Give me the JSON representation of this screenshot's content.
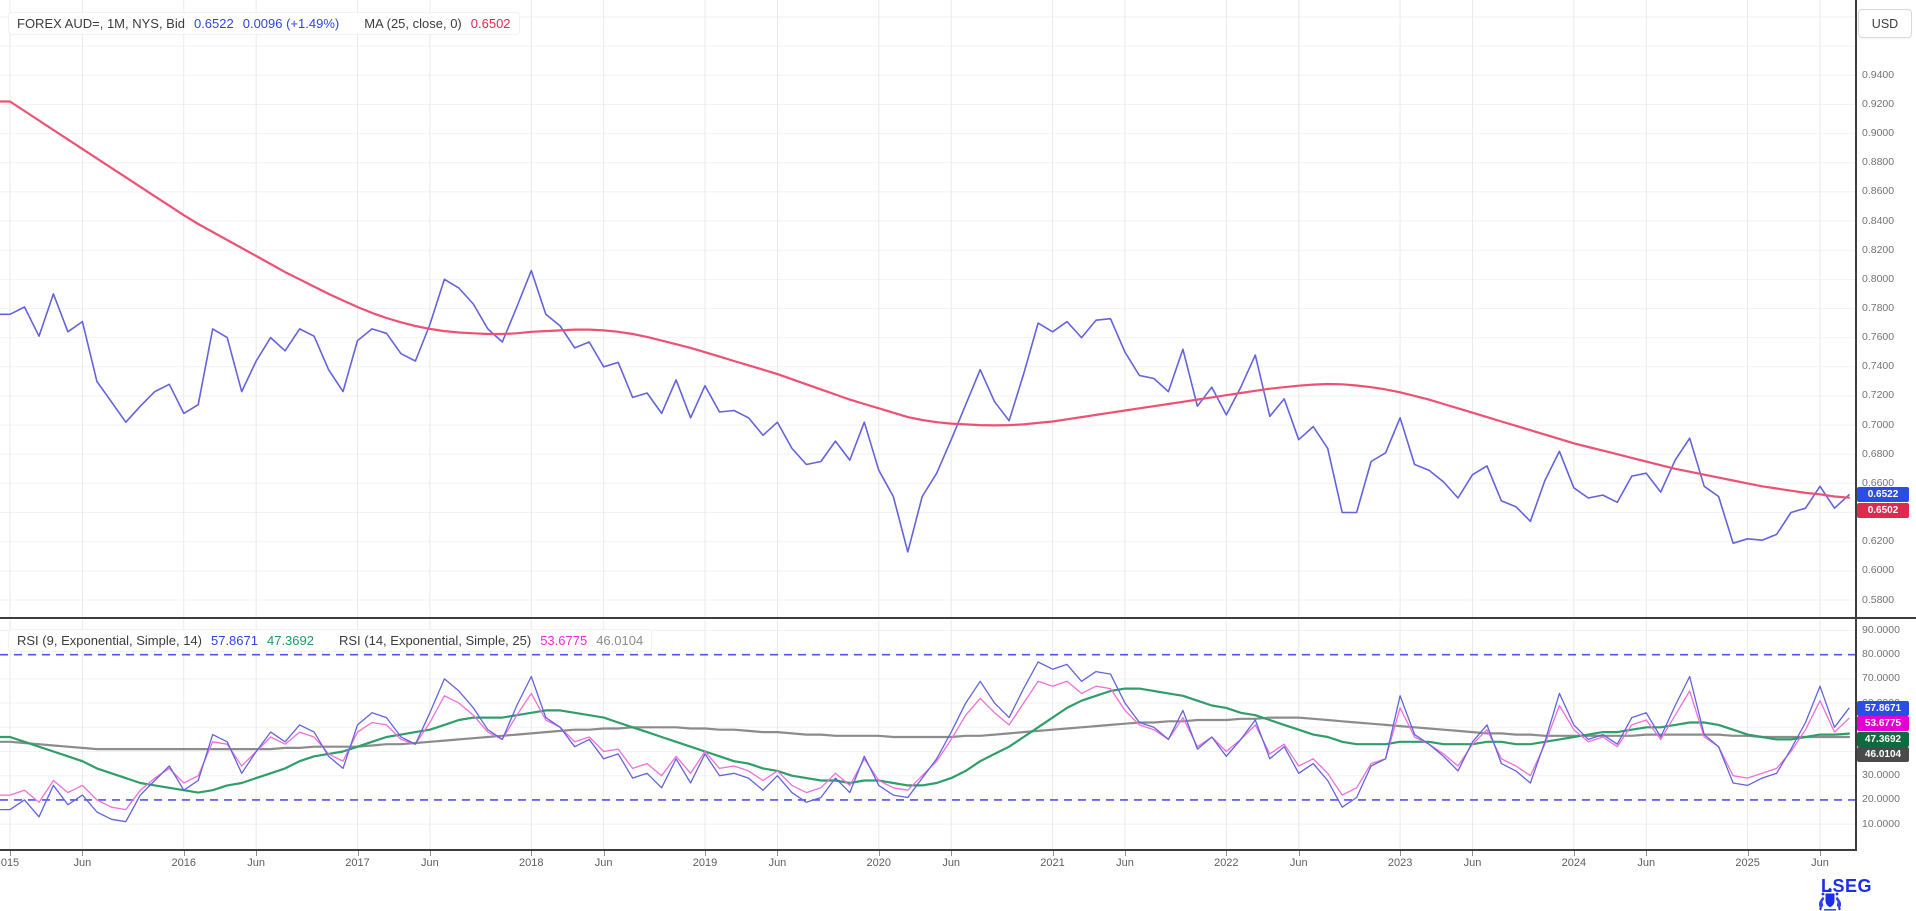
{
  "header": {
    "currency_button": "USD",
    "price_legend": [
      {
        "text": "FOREX AUD=, 1M, NYS, Bid",
        "color": "#3c3c3c"
      },
      {
        "text": "0.6522",
        "color": "#2c46e0"
      },
      {
        "text": "0.0096 (+1.49%)",
        "color": "#2c46e0"
      },
      {
        "text": "MA (25, close, 0)",
        "color": "#3c3c3c",
        "gap": true
      },
      {
        "text": "0.6502",
        "color": "#e0294e"
      }
    ],
    "rsi_legend": [
      {
        "text": "RSI (9, Exponential, Simple, 14)",
        "color": "#3c3c3c"
      },
      {
        "text": "57.8671",
        "color": "#2c46e0"
      },
      {
        "text": "47.3692",
        "color": "#1a9a66"
      },
      {
        "text": "RSI (14, Exponential, Simple, 25)",
        "color": "#3c3c3c",
        "gap": true
      },
      {
        "text": "53.6775",
        "color": "#f32ad4"
      },
      {
        "text": "46.0104",
        "color": "#8c8c8c"
      }
    ]
  },
  "axes": {
    "x_ticks": [
      {
        "label": "015",
        "m": 0
      },
      {
        "label": "Jun",
        "m": 5
      },
      {
        "label": "2016",
        "m": 12
      },
      {
        "label": "Jun",
        "m": 17
      },
      {
        "label": "2017",
        "m": 24
      },
      {
        "label": "Jun",
        "m": 29
      },
      {
        "label": "2018",
        "m": 36
      },
      {
        "label": "Jun",
        "m": 41
      },
      {
        "label": "2019",
        "m": 48
      },
      {
        "label": "Jun",
        "m": 53
      },
      {
        "label": "2020",
        "m": 60
      },
      {
        "label": "Jun",
        "m": 65
      },
      {
        "label": "2021",
        "m": 72
      },
      {
        "label": "Jun",
        "m": 77
      },
      {
        "label": "2022",
        "m": 84
      },
      {
        "label": "Jun",
        "m": 89
      },
      {
        "label": "2023",
        "m": 96
      },
      {
        "label": "Jun",
        "m": 101
      },
      {
        "label": "2024",
        "m": 108
      },
      {
        "label": "Jun",
        "m": 113
      },
      {
        "label": "2025",
        "m": 120
      },
      {
        "label": "Jun",
        "m": 125
      }
    ],
    "price_tick_labels": [
      "0.9400",
      "0.9200",
      "0.9000",
      "0.8800",
      "0.8600",
      "0.8400",
      "0.8200",
      "0.8000",
      "0.7800",
      "0.7600",
      "0.7400",
      "0.7200",
      "0.7000",
      "0.6800",
      "0.6600",
      "0.6400",
      "0.6200",
      "0.6000",
      "0.5800"
    ],
    "rsi_tick_labels": [
      "90.0000",
      "80.0000",
      "70.0000",
      "60.0000",
      "50.0000",
      "40.0000",
      "30.0000",
      "20.0000",
      "10.0000"
    ]
  },
  "badges": {
    "price": [
      {
        "text": "0.6522",
        "value": 0.6522,
        "bg": "#2a4de4"
      },
      {
        "text": "0.6502",
        "value": 0.6502,
        "bg": "#e0294e"
      }
    ],
    "rsi": [
      {
        "text": "57.8671",
        "value": 57.8671,
        "bg": "#2a4de4"
      },
      {
        "text": "53.6775",
        "value": 53.6775,
        "bg": "#e500cf"
      },
      {
        "text": "47.3692",
        "value": 47.3692,
        "bg": "#0f6b3f"
      },
      {
        "text": "46.0104",
        "value": 46.0104,
        "bg": "#4a4a4a"
      }
    ]
  },
  "chart_data": [
    {
      "panel": "price",
      "type": "line",
      "title": "FOREX AUD=, 1M, NYS, Bid",
      "symbol": "FOREX AUD=",
      "interval": "1M",
      "venue": "NYS",
      "field": "Bid",
      "last": 0.6522,
      "change": 0.0096,
      "change_pct": "+1.49%",
      "x_unit": "month",
      "x_range": [
        "2015-01",
        "2025-08"
      ],
      "ylim": [
        0.575,
        0.985
      ],
      "grid": true,
      "legend_position": "top-left",
      "series": [
        {
          "name": "Bid",
          "color": "#6363de",
          "last_label": "0.6522",
          "values": [
            0.776,
            0.781,
            0.761,
            0.79,
            0.764,
            0.771,
            0.73,
            0.716,
            0.702,
            0.713,
            0.723,
            0.728,
            0.708,
            0.714,
            0.766,
            0.76,
            0.723,
            0.744,
            0.76,
            0.751,
            0.766,
            0.761,
            0.738,
            0.723,
            0.758,
            0.766,
            0.763,
            0.749,
            0.744,
            0.769,
            0.8,
            0.794,
            0.783,
            0.766,
            0.757,
            0.781,
            0.806,
            0.776,
            0.768,
            0.753,
            0.757,
            0.74,
            0.743,
            0.719,
            0.722,
            0.708,
            0.731,
            0.705,
            0.727,
            0.709,
            0.71,
            0.705,
            0.693,
            0.702,
            0.684,
            0.673,
            0.675,
            0.689,
            0.676,
            0.702,
            0.669,
            0.651,
            0.613,
            0.651,
            0.667,
            0.69,
            0.714,
            0.738,
            0.716,
            0.703,
            0.735,
            0.77,
            0.764,
            0.771,
            0.76,
            0.772,
            0.773,
            0.75,
            0.734,
            0.732,
            0.723,
            0.752,
            0.713,
            0.726,
            0.707,
            0.726,
            0.748,
            0.706,
            0.718,
            0.69,
            0.699,
            0.684,
            0.64,
            0.64,
            0.675,
            0.681,
            0.705,
            0.673,
            0.669,
            0.661,
            0.65,
            0.666,
            0.672,
            0.648,
            0.644,
            0.634,
            0.662,
            0.682,
            0.657,
            0.65,
            0.652,
            0.647,
            0.665,
            0.667,
            0.654,
            0.676,
            0.691,
            0.658,
            0.651,
            0.619,
            0.622,
            0.621,
            0.625,
            0.64,
            0.643,
            0.658,
            0.643,
            0.6522
          ]
        },
        {
          "name": "MA (25, close, 0)",
          "color": "#ee5173",
          "last_label": "0.6502",
          "values": [
            0.922,
            0.9155,
            0.909,
            0.9025,
            0.896,
            0.8895,
            0.883,
            0.8765,
            0.87,
            0.8635,
            0.857,
            0.8505,
            0.844,
            0.838,
            0.8325,
            0.827,
            0.8215,
            0.816,
            0.8105,
            0.805,
            0.8,
            0.795,
            0.79,
            0.7855,
            0.781,
            0.777,
            0.7735,
            0.7705,
            0.768,
            0.766,
            0.7645,
            0.7635,
            0.763,
            0.7625,
            0.7625,
            0.763,
            0.764,
            0.7645,
            0.765,
            0.7655,
            0.7655,
            0.765,
            0.764,
            0.7625,
            0.7605,
            0.758,
            0.7555,
            0.753,
            0.75,
            0.747,
            0.744,
            0.741,
            0.738,
            0.735,
            0.7315,
            0.728,
            0.7245,
            0.721,
            0.7175,
            0.7145,
            0.7115,
            0.7085,
            0.7055,
            0.7035,
            0.702,
            0.701,
            0.7005,
            0.7,
            0.6998,
            0.7,
            0.7005,
            0.7015,
            0.7025,
            0.704,
            0.7055,
            0.707,
            0.7085,
            0.71,
            0.7115,
            0.713,
            0.7145,
            0.716,
            0.7175,
            0.719,
            0.7205,
            0.722,
            0.7235,
            0.725,
            0.726,
            0.727,
            0.7278,
            0.7282,
            0.728,
            0.7272,
            0.726,
            0.7245,
            0.7225,
            0.72,
            0.7175,
            0.7145,
            0.7115,
            0.7085,
            0.7055,
            0.7025,
            0.6995,
            0.6965,
            0.6935,
            0.6905,
            0.6875,
            0.685,
            0.6825,
            0.68,
            0.6775,
            0.675,
            0.6725,
            0.67,
            0.668,
            0.666,
            0.664,
            0.662,
            0.66,
            0.658,
            0.6565,
            0.655,
            0.6535,
            0.6525,
            0.651,
            0.6502
          ]
        }
      ]
    },
    {
      "panel": "rsi",
      "type": "line",
      "title": "RSI (9, Exponential, Simple, 14) / RSI (14, Exponential, Simple, 25)",
      "guides": [
        80,
        20
      ],
      "ylim": [
        0,
        100
      ],
      "grid": true,
      "series": [
        {
          "name": "RSI 9",
          "color": "#6363de",
          "last_label": "57.8671",
          "values": [
            16,
            20,
            13,
            26,
            18,
            22,
            15,
            12,
            11,
            22,
            28,
            34,
            24,
            28,
            47,
            44,
            31,
            40,
            48,
            44,
            51,
            48,
            38,
            33,
            51,
            56,
            54,
            46,
            43,
            56,
            70,
            65,
            58,
            49,
            45,
            59,
            71,
            54,
            50,
            42,
            45,
            37,
            39,
            29,
            31,
            25,
            37,
            27,
            39,
            30,
            31,
            29,
            24,
            30,
            23,
            19,
            21,
            29,
            23,
            38,
            26,
            22,
            21,
            29,
            37,
            48,
            60,
            69,
            60,
            54,
            66,
            77,
            74,
            76,
            69,
            73,
            72,
            60,
            52,
            50,
            45,
            57,
            41,
            46,
            38,
            45,
            53,
            37,
            42,
            31,
            35,
            28,
            17,
            21,
            34,
            37,
            63,
            47,
            43,
            38,
            32,
            44,
            51,
            35,
            32,
            27,
            44,
            64,
            51,
            45,
            47,
            43,
            54,
            56,
            46,
            59,
            71,
            47,
            42,
            27,
            26,
            29,
            31,
            41,
            52,
            67,
            50,
            57.9
          ]
        },
        {
          "name": "RSI 9 signal MA(14)",
          "color": "#2f9e68",
          "last_label": "47.3692",
          "values": [
            46,
            44,
            42,
            40,
            38,
            36,
            33,
            31,
            29,
            27,
            26,
            25,
            24,
            23,
            24,
            26,
            27,
            29,
            31,
            33,
            36,
            38,
            39,
            40,
            42,
            44,
            46,
            47,
            48,
            49,
            51,
            53,
            54,
            54,
            54,
            55,
            56,
            57,
            57,
            56,
            55,
            54,
            52,
            50,
            48,
            46,
            44,
            42,
            40,
            38,
            36,
            35,
            33,
            32,
            30,
            29,
            28,
            28,
            27,
            28,
            28,
            27,
            26,
            26,
            27,
            29,
            32,
            36,
            39,
            42,
            46,
            50,
            54,
            58,
            61,
            63,
            65,
            66,
            66,
            65,
            64,
            63,
            61,
            59,
            58,
            56,
            55,
            53,
            51,
            49,
            47,
            46,
            44,
            43,
            43,
            43,
            44,
            44,
            44,
            43,
            43,
            43,
            44,
            44,
            43,
            43,
            44,
            45,
            46,
            47,
            48,
            48,
            49,
            50,
            50,
            51,
            52,
            52,
            51,
            49,
            47,
            46,
            45,
            45,
            46,
            47,
            47,
            47.4
          ]
        },
        {
          "name": "RSI 14",
          "color": "#f06fd8",
          "last_label": "53.6775",
          "values": [
            22,
            24,
            19,
            28,
            23,
            26,
            20,
            17,
            16,
            24,
            29,
            33,
            27,
            30,
            44,
            43,
            34,
            40,
            46,
            43,
            48,
            46,
            39,
            36,
            48,
            52,
            51,
            45,
            43,
            52,
            63,
            60,
            55,
            48,
            45,
            55,
            64,
            53,
            50,
            44,
            46,
            40,
            41,
            33,
            35,
            30,
            38,
            31,
            40,
            33,
            34,
            32,
            28,
            32,
            26,
            23,
            25,
            31,
            26,
            37,
            28,
            25,
            24,
            30,
            36,
            45,
            55,
            62,
            56,
            51,
            60,
            69,
            67,
            69,
            64,
            67,
            66,
            57,
            51,
            49,
            45,
            54,
            42,
            46,
            40,
            45,
            51,
            39,
            43,
            34,
            37,
            31,
            22,
            25,
            35,
            37,
            58,
            46,
            43,
            39,
            34,
            43,
            49,
            37,
            34,
            30,
            43,
            59,
            49,
            44,
            46,
            42,
            51,
            53,
            45,
            55,
            65,
            46,
            42,
            30,
            29,
            31,
            33,
            40,
            49,
            61,
            48,
            53.7
          ]
        },
        {
          "name": "RSI 14 signal MA(25)",
          "color": "#8c8c8c",
          "last_label": "46.0104",
          "values": [
            44,
            43.5,
            43,
            42.5,
            42,
            41.5,
            41,
            41,
            41,
            41,
            41,
            41,
            41,
            41,
            41,
            41,
            41,
            41,
            41,
            41.5,
            41.5,
            42,
            42,
            42,
            42,
            42.5,
            43,
            43,
            43.5,
            44,
            44.5,
            45,
            45.5,
            46,
            46.5,
            47,
            47.5,
            48,
            48.5,
            49,
            49,
            49.5,
            49.5,
            50,
            50,
            50,
            50,
            49.5,
            49.5,
            49,
            49,
            48.5,
            48,
            48,
            47.5,
            47,
            47,
            46.5,
            46.5,
            46.5,
            46.5,
            46,
            46,
            46,
            46,
            46,
            46.5,
            46.5,
            47,
            47.5,
            48,
            48.5,
            49,
            49.5,
            50,
            50.5,
            51,
            51.5,
            52,
            52,
            52.5,
            52.5,
            53,
            53,
            53,
            53.5,
            53.5,
            54,
            54,
            54,
            53.5,
            53,
            52.5,
            52,
            51.5,
            51,
            50.5,
            50,
            49.5,
            49,
            48.5,
            48,
            47.5,
            47.5,
            47,
            47,
            46.5,
            46.5,
            46.5,
            46.5,
            46.5,
            46.5,
            46.5,
            47,
            47,
            47,
            47,
            47,
            47,
            46.5,
            46.5,
            46,
            46,
            46,
            46,
            46,
            46,
            46.0
          ]
        }
      ]
    }
  ],
  "footer": {
    "brand": "LSEG"
  }
}
